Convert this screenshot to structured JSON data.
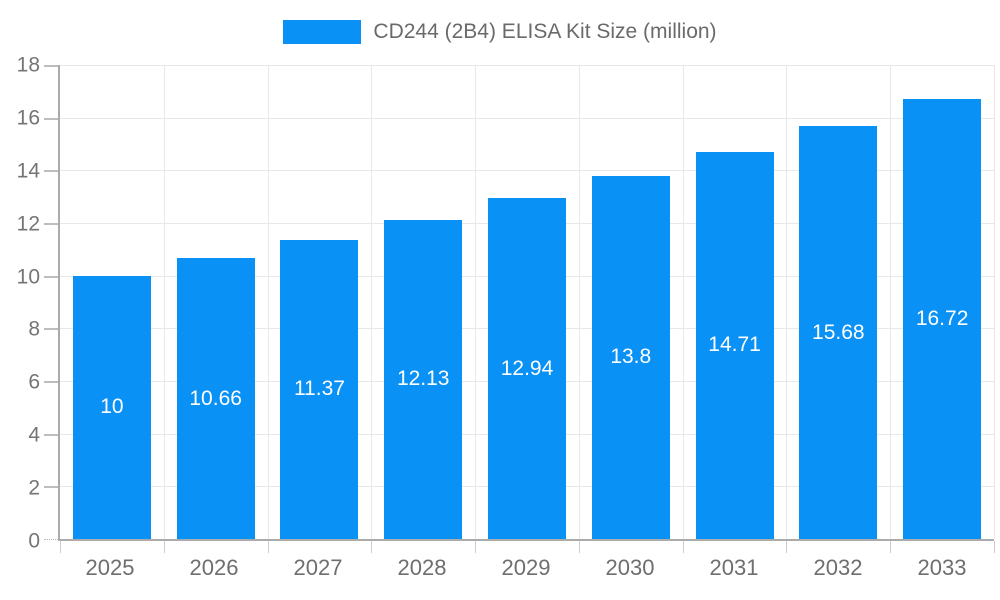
{
  "legend": {
    "label": "CD244 (2B4) ELISA Kit Size (million)",
    "swatch_color": "#0a91f5"
  },
  "chart_data": {
    "type": "bar",
    "title": "CD244 (2B4) ELISA Kit Size (million)",
    "categories": [
      "2025",
      "2026",
      "2027",
      "2028",
      "2029",
      "2030",
      "2031",
      "2032",
      "2033"
    ],
    "values": [
      10,
      10.66,
      11.37,
      12.13,
      12.94,
      13.8,
      14.71,
      15.68,
      16.72
    ],
    "value_labels": [
      "10",
      "10.66",
      "11.37",
      "12.13",
      "12.94",
      "13.8",
      "14.71",
      "15.68",
      "16.72"
    ],
    "xlabel": "",
    "ylabel": "",
    "ylim": [
      0,
      18
    ],
    "yticks": [
      0,
      2,
      4,
      6,
      8,
      10,
      12,
      14,
      16,
      18
    ],
    "grid": true,
    "legend_position": "top-center",
    "bar_color": "#0a91f5",
    "bar_label_color": "#ffffff",
    "gridline_color": "#e8e8e8",
    "axis_line_color": "#ababab",
    "axis_text_color": "#757575"
  }
}
